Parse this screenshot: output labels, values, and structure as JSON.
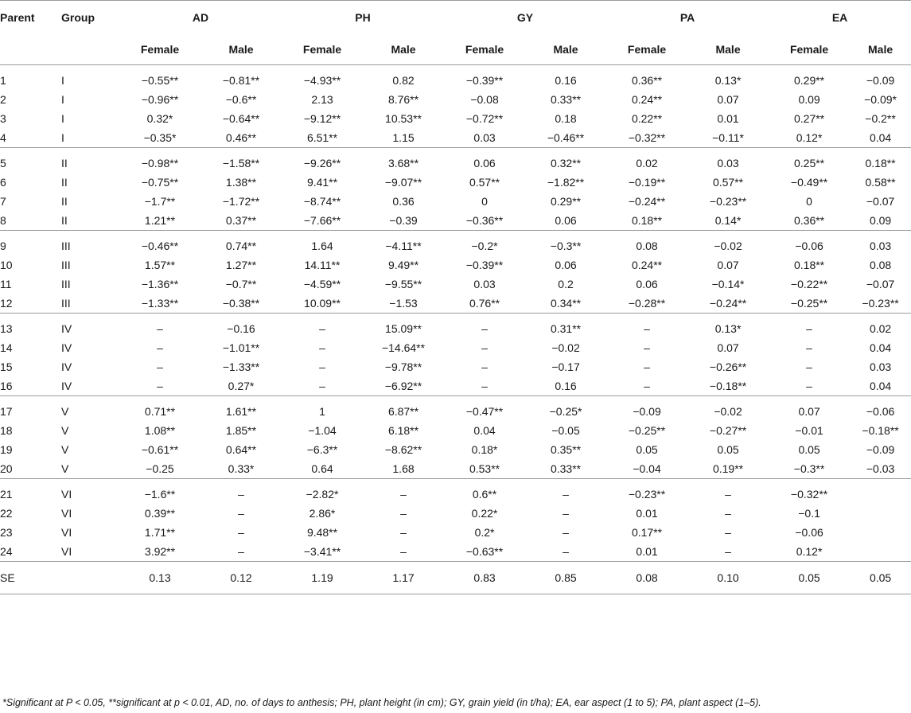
{
  "headers": {
    "parent": "Parent",
    "group": "Group",
    "traits": [
      "AD",
      "PH",
      "GY",
      "PA",
      "EA"
    ],
    "female": "Female",
    "male": "Male"
  },
  "groups": [
    {
      "rows": [
        {
          "parent": "1",
          "group": "I",
          "values": [
            "−0.55**",
            "−0.81**",
            "−4.93**",
            "0.82",
            "−0.39**",
            "0.16",
            "0.36**",
            "0.13*",
            "0.29**",
            "−0.09"
          ]
        },
        {
          "parent": "2",
          "group": "I",
          "values": [
            "−0.96**",
            "−0.6**",
            "2.13",
            "8.76**",
            "−0.08",
            "0.33**",
            "0.24**",
            "0.07",
            "0.09",
            "−0.09*"
          ]
        },
        {
          "parent": "3",
          "group": "I",
          "values": [
            "0.32*",
            "−0.64**",
            "−9.12**",
            "10.53**",
            "−0.72**",
            "0.18",
            "0.22**",
            "0.01",
            "0.27**",
            "−0.2**"
          ]
        },
        {
          "parent": "4",
          "group": "I",
          "values": [
            "−0.35*",
            "0.46**",
            "6.51**",
            "1.15",
            "0.03",
            "−0.46**",
            "−0.32**",
            "−0.11*",
            "0.12*",
            "0.04"
          ]
        }
      ]
    },
    {
      "rows": [
        {
          "parent": "5",
          "group": "II",
          "values": [
            "−0.98**",
            "−1.58**",
            "−9.26**",
            "3.68**",
            "0.06",
            "0.32**",
            "0.02",
            "0.03",
            "0.25**",
            "0.18**"
          ]
        },
        {
          "parent": "6",
          "group": "II",
          "values": [
            "−0.75**",
            "1.38**",
            "9.41**",
            "−9.07**",
            "0.57**",
            "−1.82**",
            "−0.19**",
            "0.57**",
            "−0.49**",
            "0.58**"
          ]
        },
        {
          "parent": "7",
          "group": "II",
          "values": [
            "−1.7**",
            "−1.72**",
            "−8.74**",
            "0.36",
            "0",
            "0.29**",
            "−0.24**",
            "−0.23**",
            "0",
            "−0.07"
          ]
        },
        {
          "parent": "8",
          "group": "II",
          "values": [
            "1.21**",
            "0.37**",
            "−7.66**",
            "−0.39",
            "−0.36**",
            "0.06",
            "0.18**",
            "0.14*",
            "0.36**",
            "0.09"
          ]
        }
      ]
    },
    {
      "rows": [
        {
          "parent": "9",
          "group": "III",
          "values": [
            "−0.46**",
            "0.74**",
            "1.64",
            "−4.11**",
            "−0.2*",
            "−0.3**",
            "0.08",
            "−0.02",
            "−0.06",
            "0.03"
          ]
        },
        {
          "parent": "10",
          "group": "III",
          "values": [
            "1.57**",
            "1.27**",
            "14.11**",
            "9.49**",
            "−0.39**",
            "0.06",
            "0.24**",
            "0.07",
            "0.18**",
            "0.08"
          ]
        },
        {
          "parent": "11",
          "group": "III",
          "values": [
            "−1.36**",
            "−0.7**",
            "−4.59**",
            "−9.55**",
            "0.03",
            "0.2",
            "0.06",
            "−0.14*",
            "−0.22**",
            "−0.07"
          ]
        },
        {
          "parent": "12",
          "group": "III",
          "values": [
            "−1.33**",
            "−0.38**",
            "10.09**",
            "−1.53",
            "0.76**",
            "0.34**",
            "−0.28**",
            "−0.24**",
            "−0.25**",
            "−0.23**"
          ]
        }
      ]
    },
    {
      "rows": [
        {
          "parent": "13",
          "group": "IV",
          "values": [
            "–",
            "−0.16",
            "–",
            "15.09**",
            "–",
            "0.31**",
            "–",
            "0.13*",
            "–",
            "0.02"
          ]
        },
        {
          "parent": "14",
          "group": "IV",
          "values": [
            "–",
            "−1.01**",
            "–",
            "−14.64**",
            "–",
            "−0.02",
            "–",
            "0.07",
            "–",
            "0.04"
          ]
        },
        {
          "parent": "15",
          "group": "IV",
          "values": [
            "–",
            "−1.33**",
            "–",
            "−9.78**",
            "–",
            "−0.17",
            "–",
            "−0.26**",
            "–",
            "0.03"
          ]
        },
        {
          "parent": "16",
          "group": "IV",
          "values": [
            "–",
            "0.27*",
            "–",
            "−6.92**",
            "–",
            "0.16",
            "–",
            "−0.18**",
            "–",
            "0.04"
          ]
        }
      ]
    },
    {
      "rows": [
        {
          "parent": "17",
          "group": "V",
          "values": [
            "0.71**",
            "1.61**",
            "1",
            "6.87**",
            "−0.47**",
            "−0.25*",
            "−0.09",
            "−0.02",
            "0.07",
            "−0.06"
          ]
        },
        {
          "parent": "18",
          "group": "V",
          "values": [
            "1.08**",
            "1.85**",
            "−1.04",
            "6.18**",
            "0.04",
            "−0.05",
            "−0.25**",
            "−0.27**",
            "−0.01",
            "−0.18**"
          ]
        },
        {
          "parent": "19",
          "group": "V",
          "values": [
            "−0.61**",
            "0.64**",
            "−6.3**",
            "−8.62**",
            "0.18*",
            "0.35**",
            "0.05",
            "0.05",
            "0.05",
            "−0.09"
          ]
        },
        {
          "parent": "20",
          "group": "V",
          "values": [
            "−0.25",
            "0.33*",
            "0.64",
            "1.68",
            "0.53**",
            "0.33**",
            "−0.04",
            "0.19**",
            "−0.3**",
            "−0.03"
          ]
        }
      ]
    },
    {
      "rows": [
        {
          "parent": "21",
          "group": "VI",
          "values": [
            "−1.6**",
            "–",
            "−2.82*",
            "–",
            "0.6**",
            "–",
            "−0.23**",
            "–",
            "−0.32**",
            ""
          ]
        },
        {
          "parent": "22",
          "group": "VI",
          "values": [
            "0.39**",
            "–",
            "2.86*",
            "–",
            "0.22*",
            "–",
            "0.01",
            "–",
            "−0.1",
            ""
          ]
        },
        {
          "parent": "23",
          "group": "VI",
          "values": [
            "1.71**",
            "–",
            "9.48**",
            "–",
            "0.2*",
            "–",
            "0.17**",
            "–",
            "−0.06",
            ""
          ]
        },
        {
          "parent": "24",
          "group": "VI",
          "values": [
            "3.92**",
            "–",
            "−3.41**",
            "–",
            "−0.63**",
            "–",
            "0.01",
            "–",
            "0.12*",
            ""
          ]
        }
      ]
    }
  ],
  "se_row": {
    "label": "SE",
    "values": [
      "0.13",
      "0.12",
      "1.19",
      "1.17",
      "0.83",
      "0.85",
      "0.08",
      "0.10",
      "0.05",
      "0.05"
    ]
  },
  "footnote": "*Significant at P < 0.05, **significant at p < 0.01, AD, no. of days to anthesis; PH, plant height (in cm); GY, grain yield (in t/ha); EA, ear aspect (1 to 5); PA, plant aspect (1–5)."
}
